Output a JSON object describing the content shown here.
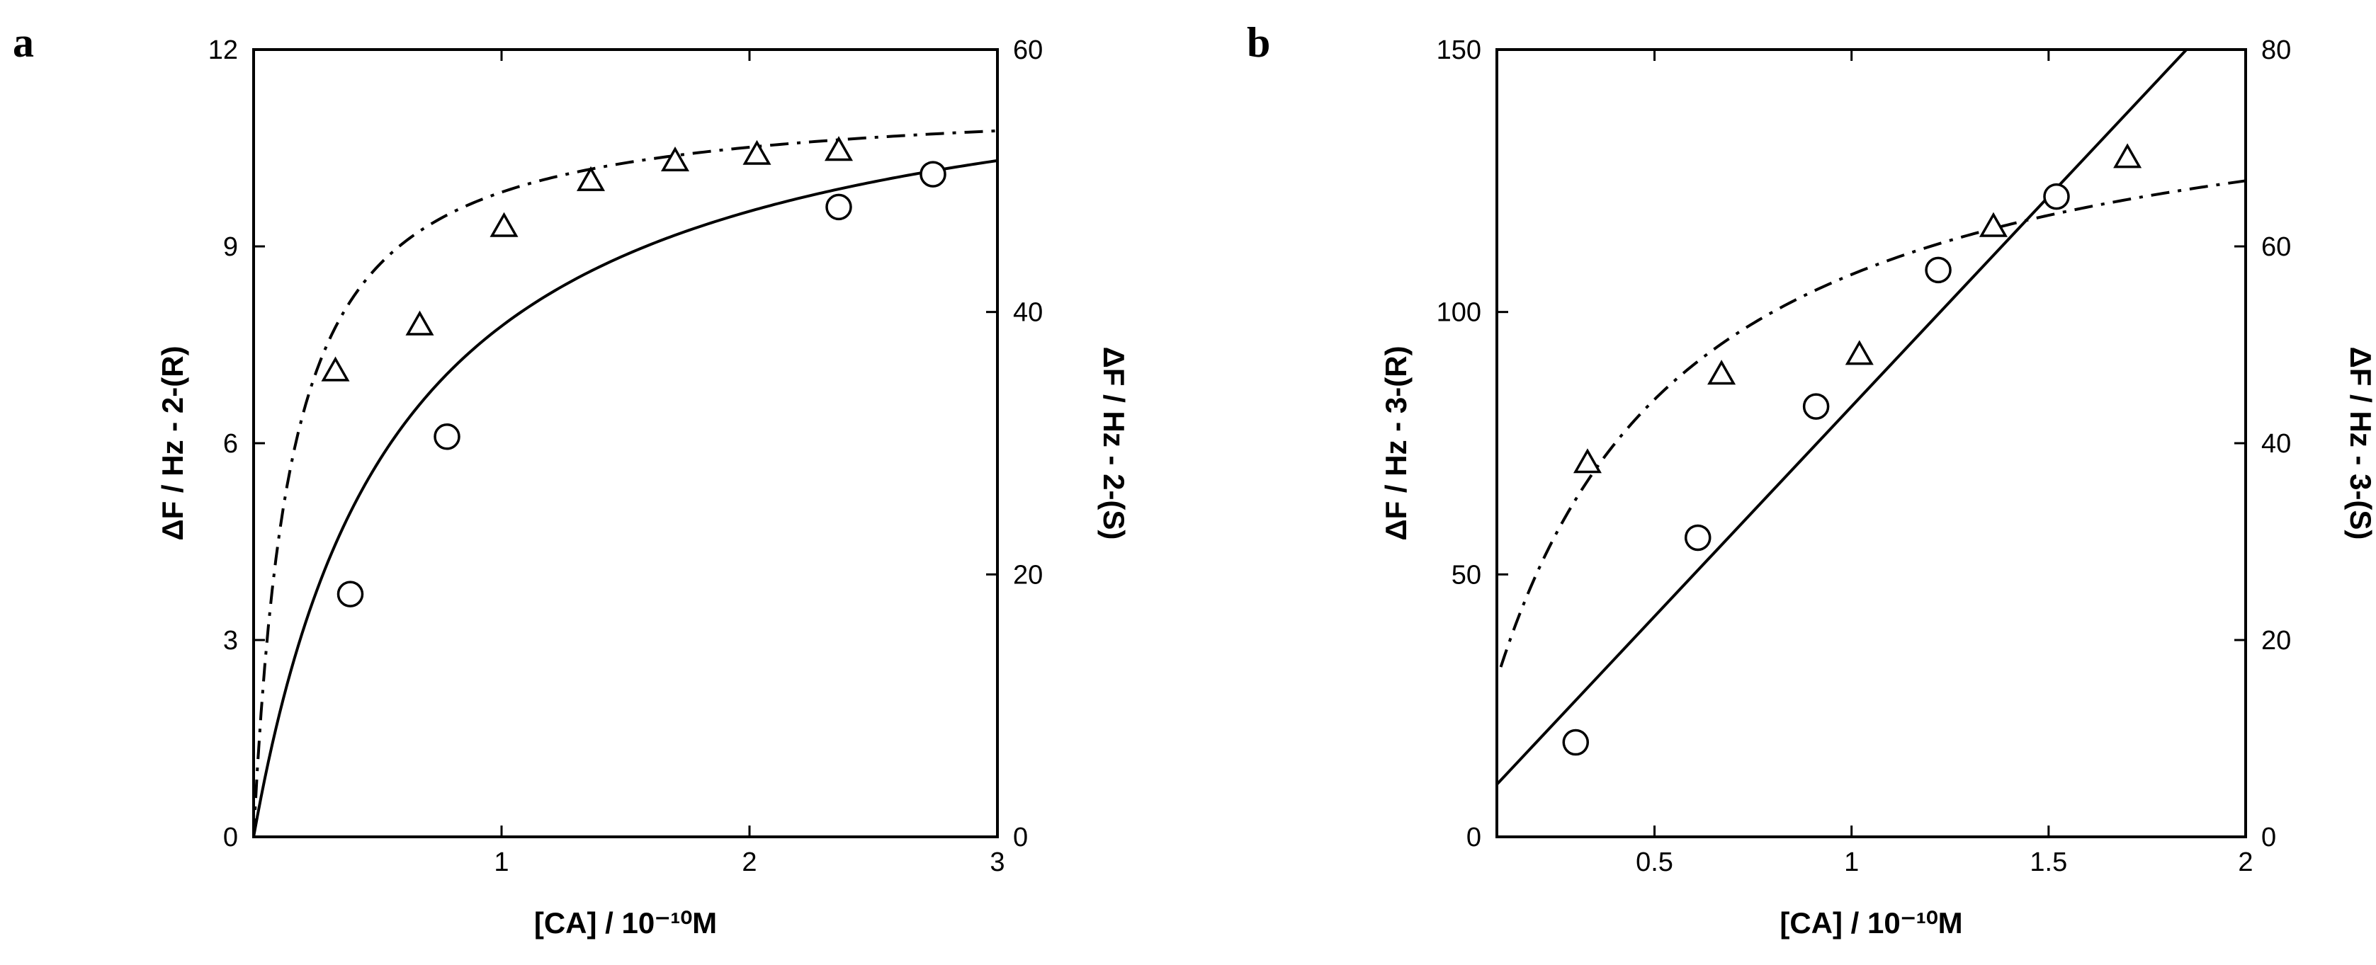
{
  "chart_data": [
    {
      "panel": "a",
      "type": "scatter",
      "xlabel": "[CA] / 10⁻¹⁰M",
      "ylabel_left": "ΔF / Hz - 2-(R)",
      "ylabel_right": "ΔF / Hz - 2-(S)",
      "xlim": [
        0,
        3
      ],
      "ylim_left": [
        0,
        12
      ],
      "ylim_right": [
        0,
        60
      ],
      "xticks": [
        1,
        2,
        3
      ],
      "yticks_left": [
        0,
        3,
        6,
        9,
        12
      ],
      "yticks_right": [
        0,
        20,
        40,
        60
      ],
      "grid": false,
      "legend": "none",
      "series": [
        {
          "marker": "circle",
          "axis": "left",
          "points": [
            [
              0.39,
              3.7
            ],
            [
              0.78,
              6.1
            ],
            [
              2.36,
              9.6
            ],
            [
              2.74,
              10.1
            ]
          ],
          "fit": {
            "style": "solid",
            "form": "saturation",
            "max": 12.3,
            "k": 0.58
          }
        },
        {
          "marker": "triangle",
          "axis": "right",
          "points": [
            [
              0.33,
              35.5
            ],
            [
              0.67,
              39.0
            ],
            [
              1.01,
              46.5
            ],
            [
              1.36,
              50.0
            ],
            [
              1.7,
              51.5
            ],
            [
              2.03,
              52.0
            ],
            [
              2.36,
              52.3
            ]
          ],
          "fit": {
            "style": "dashdot",
            "form": "saturation",
            "max": 56.5,
            "k": 0.15
          }
        }
      ]
    },
    {
      "panel": "b",
      "type": "scatter",
      "xlabel": "[CA] / 10⁻¹⁰M",
      "ylabel_left": "ΔF / Hz - 3-(R)",
      "ylabel_right": "ΔF / Hz - 3-(S)",
      "xlim": [
        0.1,
        2
      ],
      "ylim_left": [
        0,
        150
      ],
      "ylim_right": [
        0,
        80
      ],
      "xticks": [
        0.5,
        1,
        1.5,
        2
      ],
      "xtick_labels": [
        "0.5",
        "1",
        "1.5",
        "2"
      ],
      "yticks_left": [
        0,
        50,
        100,
        150
      ],
      "yticks_right": [
        0,
        20,
        40,
        60,
        80
      ],
      "grid": false,
      "legend": "none",
      "series": [
        {
          "marker": "circle",
          "axis": "left",
          "points": [
            [
              0.3,
              18
            ],
            [
              0.61,
              57
            ],
            [
              0.91,
              82
            ],
            [
              1.22,
              108
            ],
            [
              1.52,
              122
            ]
          ],
          "fit": {
            "style": "solid",
            "form": "linear",
            "intercept": 2,
            "slope": 80
          }
        },
        {
          "marker": "triangle",
          "axis": "right",
          "points": [
            [
              0.33,
              38
            ],
            [
              0.67,
              47
            ],
            [
              1.02,
              49
            ],
            [
              1.36,
              62
            ],
            [
              1.7,
              69
            ]
          ],
          "fit": {
            "style": "dashdot",
            "form": "saturation",
            "max": 80,
            "k": 0.4,
            "x_from": 0.11
          }
        }
      ]
    }
  ]
}
